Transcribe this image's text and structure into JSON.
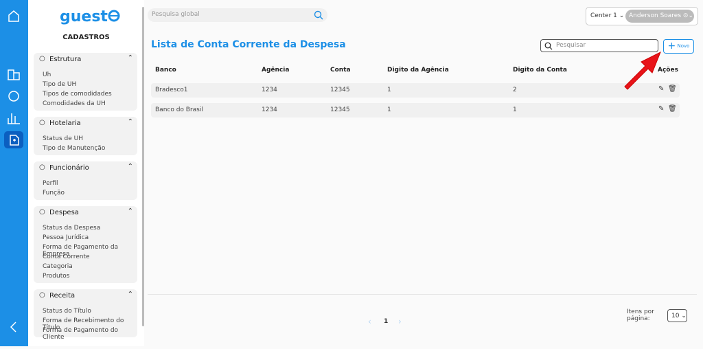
{
  "logo": "guest",
  "sidebar": {
    "title": "CADASTROS",
    "sections": [
      {
        "title": "Estrutura",
        "items": [
          "Uh",
          "Tipo de UH",
          "Tipos de comodidades",
          "Comodidades da UH"
        ]
      },
      {
        "title": "Hotelaria",
        "items": [
          "Status de UH",
          "Tipo de Manutenção"
        ]
      },
      {
        "title": "Funcionário",
        "items": [
          "Perfil",
          "Função"
        ]
      },
      {
        "title": "Despesa",
        "items": [
          "Status da Despesa",
          "Pessoa Jurídica",
          "Forma de Pagamento da Empresa",
          "Conta Corrente",
          "Categoria",
          "Produtos"
        ]
      },
      {
        "title": "Receita",
        "items": [
          "Status do Título",
          "Forma de Recebimento do Título",
          "Forma de Pagamento do Cliente"
        ]
      }
    ]
  },
  "header": {
    "search_placeholder": "Pesquisa global",
    "unit": "Center 1",
    "user": "Anderson Soares"
  },
  "page": {
    "title": "Lista de Conta Corrente da Despesa",
    "search_placeholder": "Pesquisar",
    "new_button": "Novo"
  },
  "table": {
    "columns": [
      "Banco",
      "Agência",
      "Conta",
      "Digito da Agência",
      "Digito da Conta",
      "Ações"
    ],
    "rows": [
      [
        "Bradesco1",
        "1234",
        "12345",
        "1",
        "2"
      ],
      [
        "Banco do Brasil",
        "1234",
        "12345",
        "1",
        "1"
      ]
    ]
  },
  "pagination": {
    "current": "1",
    "per_page_label": "Itens por página:",
    "per_page": "10"
  }
}
